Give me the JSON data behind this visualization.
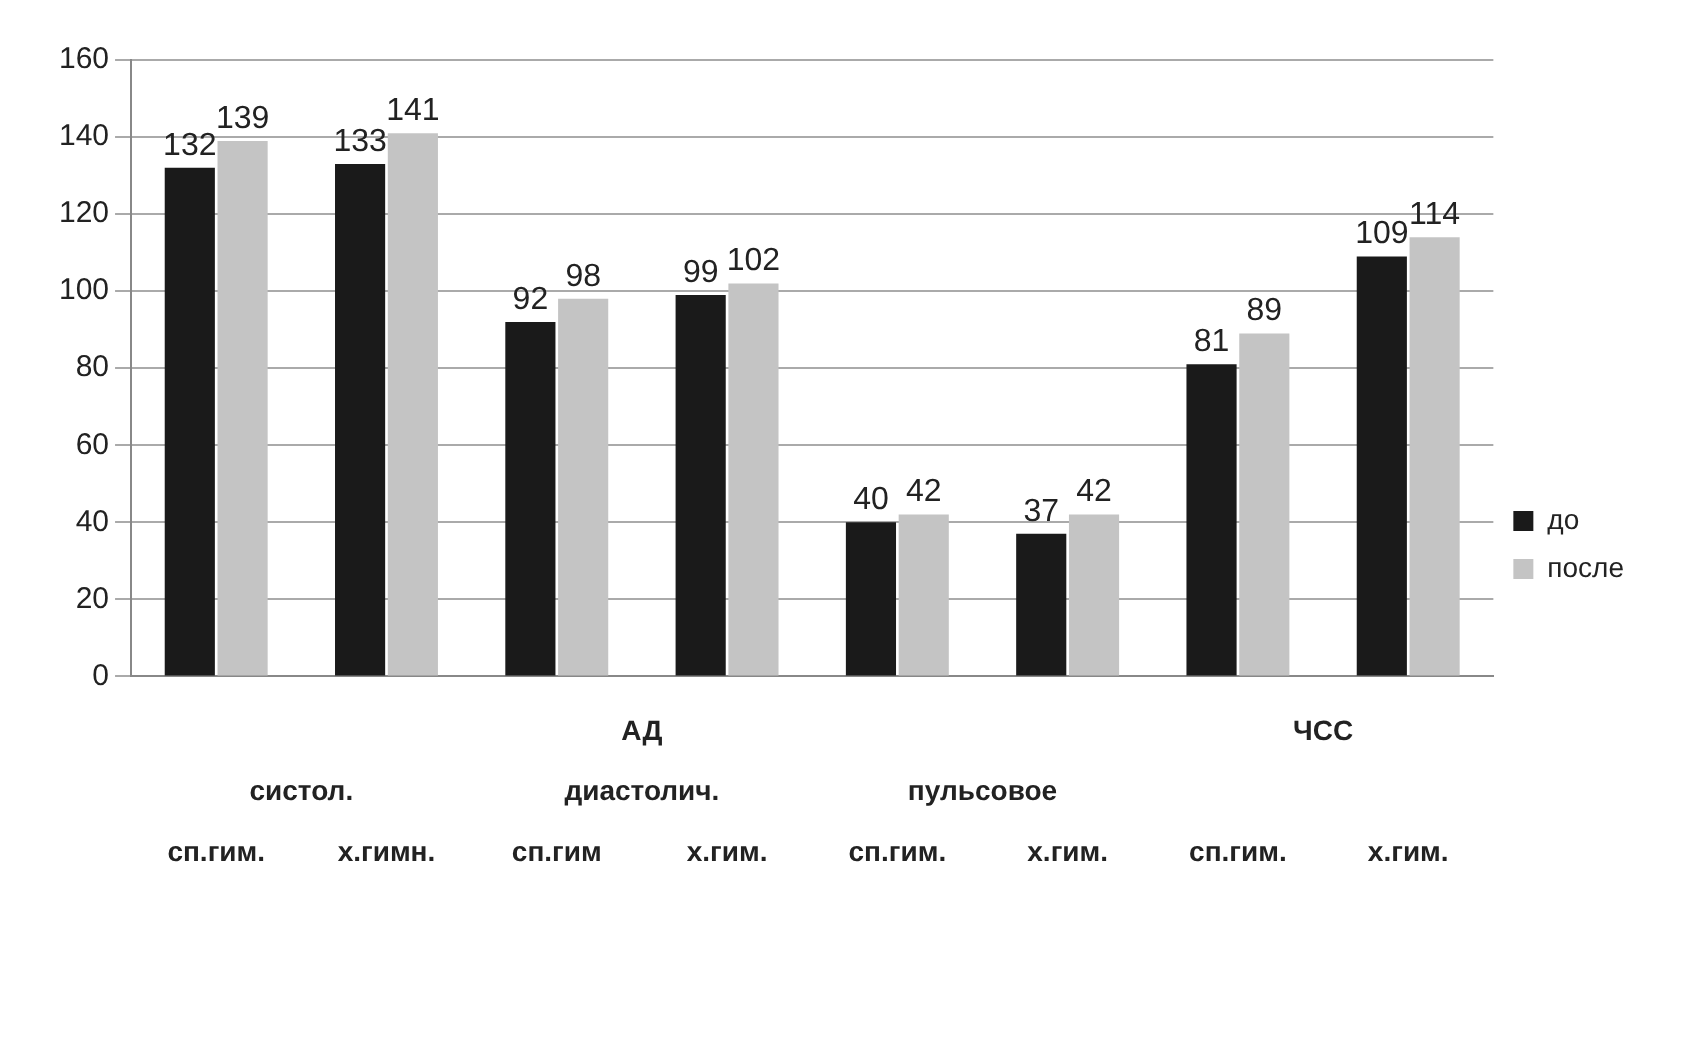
{
  "chart_data": {
    "type": "bar",
    "categories": [
      "сп.гим.",
      "х.гимн.",
      "сп.гим",
      "х.гим.",
      "сп.гим.",
      "х.гим.",
      "сп.гим.",
      "х.гим."
    ],
    "series": [
      {
        "name": "до",
        "color": "#1a1a1a",
        "values": [
          132,
          133,
          92,
          99,
          40,
          37,
          81,
          109
        ]
      },
      {
        "name": "после",
        "color": "#c4c4c4",
        "values": [
          139,
          141,
          98,
          102,
          42,
          42,
          89,
          114
        ]
      }
    ],
    "ylim": [
      0,
      160
    ],
    "yticks": [
      0,
      20,
      40,
      60,
      80,
      100,
      120,
      140,
      160
    ],
    "grid": "y",
    "legend": "right",
    "data_labels": true,
    "annotations": [
      "систол.",
      "диастолич.",
      "пульсовое",
      "АД",
      "ЧСС"
    ]
  }
}
